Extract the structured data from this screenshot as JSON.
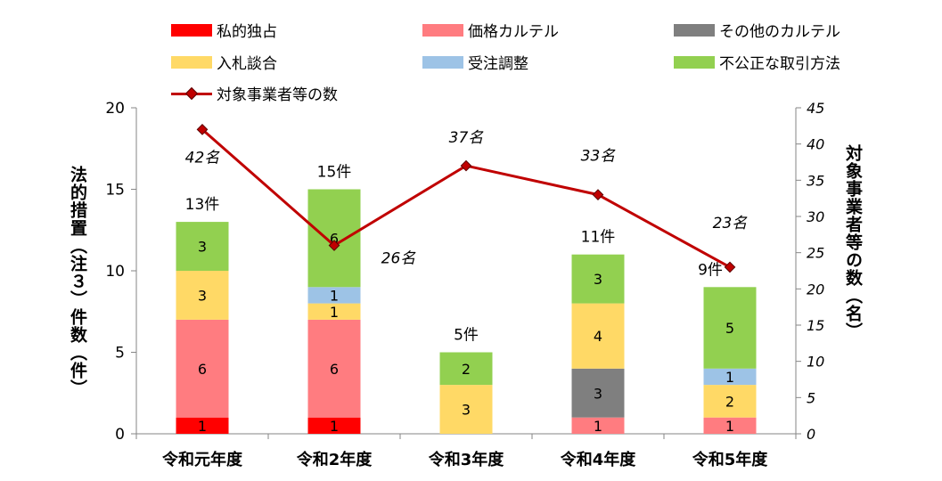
{
  "chart_data": {
    "type": "bar",
    "categories": [
      "令和元年度",
      "令和2年度",
      "令和3年度",
      "令和4年度",
      "令和5年度"
    ],
    "series": [
      {
        "name": "私的独占",
        "values": [
          1,
          1,
          0,
          0,
          0
        ],
        "color": "#ff0000"
      },
      {
        "name": "価格カルテル",
        "values": [
          6,
          6,
          0,
          1,
          1
        ],
        "color": "#ff7c80"
      },
      {
        "name": "その他のカルテル",
        "values": [
          0,
          0,
          0,
          3,
          0
        ],
        "color": "#7f7f7f"
      },
      {
        "name": "入札談合",
        "values": [
          3,
          1,
          3,
          4,
          2
        ],
        "color": "#ffd966"
      },
      {
        "name": "受注調整",
        "values": [
          0,
          1,
          0,
          0,
          1
        ],
        "color": "#9dc3e6"
      },
      {
        "name": "不公正な取引方法",
        "values": [
          3,
          6,
          2,
          3,
          5
        ],
        "color": "#92d050"
      }
    ],
    "line_series": {
      "name": "対象事業者等の数",
      "values": [
        42,
        26,
        37,
        33,
        23
      ],
      "color": "#c00000",
      "labels": [
        "42名",
        "26名",
        "37名",
        "33名",
        "23名"
      ]
    },
    "totals_labels": [
      "13件",
      "15件",
      "5件",
      "11件",
      "9件"
    ],
    "ylabel": "法的措置（注３）件数（件）",
    "ylabel_right": "対象事業者等の数（名）",
    "ylim": [
      0,
      20
    ],
    "yticks": [
      "0",
      "5",
      "10",
      "15",
      "20"
    ],
    "ylim_right": [
      0,
      45
    ],
    "yticks_right": [
      "0",
      "5",
      "10",
      "15",
      "20",
      "25",
      "30",
      "35",
      "40",
      "45"
    ],
    "grid": false,
    "legend_position": "top"
  }
}
